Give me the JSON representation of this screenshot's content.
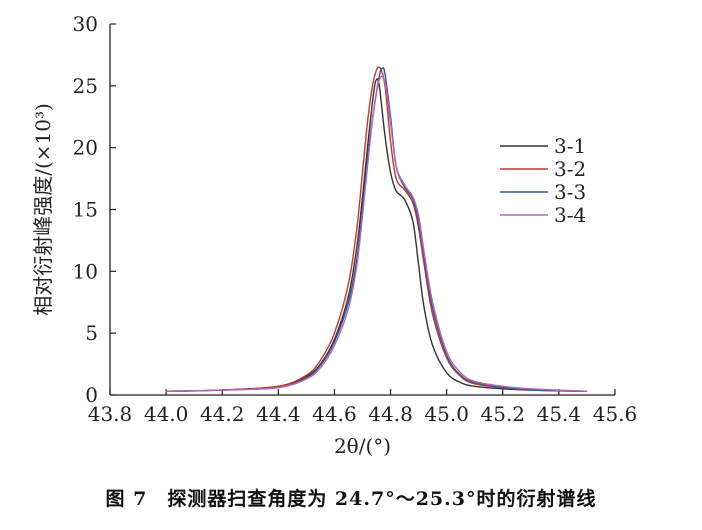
{
  "caption": "图 7　探测器扫查角度为 24.7°～25.3°时的衍射谱线",
  "chart_data": {
    "type": "line",
    "xlabel": "2θ/(°)",
    "ylabel": "相对衍射峰强度/(×10³)",
    "xlim": [
      43.8,
      45.6
    ],
    "ylim": [
      0,
      30
    ],
    "x_ticks": [
      "43.8",
      "44.0",
      "44.2",
      "44.4",
      "44.6",
      "44.8",
      "45.0",
      "45.2",
      "45.4",
      "45.6"
    ],
    "y_ticks": [
      "0",
      "5",
      "10",
      "15",
      "20",
      "25",
      "30"
    ],
    "grid": false,
    "legend_position": "right",
    "series": [
      {
        "name": "3-1",
        "color": "#333333",
        "x": [
          44.0,
          44.2,
          44.4,
          44.5,
          44.55,
          44.6,
          44.65,
          44.68,
          44.7,
          44.72,
          44.74,
          44.75,
          44.76,
          44.78,
          44.8,
          44.82,
          44.85,
          44.88,
          44.9,
          44.92,
          44.95,
          45.0,
          45.05,
          45.1,
          45.2,
          45.3,
          45.5
        ],
        "y": [
          0.3,
          0.4,
          0.7,
          1.5,
          2.5,
          4.5,
          8.0,
          12.0,
          16.0,
          20.5,
          24.5,
          25.5,
          25.0,
          21.0,
          18.0,
          16.5,
          15.8,
          14.0,
          10.5,
          7.0,
          4.0,
          1.8,
          1.0,
          0.7,
          0.5,
          0.4,
          0.3
        ]
      },
      {
        "name": "3-2",
        "color": "#c0392b",
        "x": [
          44.0,
          44.2,
          44.4,
          44.5,
          44.55,
          44.6,
          44.65,
          44.68,
          44.7,
          44.72,
          44.74,
          44.76,
          44.78,
          44.8,
          44.82,
          44.85,
          44.88,
          44.9,
          44.92,
          44.95,
          45.0,
          45.05,
          45.1,
          45.2,
          45.3,
          45.5
        ],
        "y": [
          0.3,
          0.4,
          0.7,
          1.6,
          2.8,
          5.0,
          9.0,
          13.5,
          18.0,
          22.5,
          25.5,
          26.5,
          25.0,
          20.5,
          17.5,
          16.6,
          15.5,
          13.5,
          10.5,
          6.5,
          3.0,
          1.5,
          0.9,
          0.6,
          0.4,
          0.3
        ]
      },
      {
        "name": "3-3",
        "color": "#2e5c8a",
        "x": [
          44.0,
          44.2,
          44.4,
          44.5,
          44.55,
          44.6,
          44.65,
          44.68,
          44.7,
          44.72,
          44.74,
          44.76,
          44.77,
          44.78,
          44.8,
          44.82,
          44.85,
          44.88,
          44.9,
          44.92,
          44.95,
          45.0,
          45.05,
          45.1,
          45.2,
          45.3,
          45.5
        ],
        "y": [
          0.3,
          0.4,
          0.6,
          1.4,
          2.4,
          4.3,
          7.5,
          11.0,
          15.0,
          19.5,
          23.0,
          25.8,
          26.4,
          26.0,
          22.5,
          18.5,
          16.8,
          15.8,
          14.0,
          11.0,
          7.0,
          3.2,
          1.6,
          1.0,
          0.6,
          0.4,
          0.3
        ]
      },
      {
        "name": "3-4",
        "color": "#b565b5",
        "x": [
          44.0,
          44.2,
          44.4,
          44.5,
          44.55,
          44.6,
          44.65,
          44.68,
          44.7,
          44.72,
          44.74,
          44.76,
          44.78,
          44.8,
          44.82,
          44.85,
          44.88,
          44.9,
          44.92,
          44.95,
          45.0,
          45.05,
          45.1,
          45.2,
          45.3,
          45.5
        ],
        "y": [
          0.3,
          0.4,
          0.6,
          1.3,
          2.2,
          4.0,
          7.0,
          10.5,
          14.5,
          19.0,
          23.0,
          25.5,
          25.3,
          22.0,
          18.5,
          17.0,
          16.0,
          14.5,
          11.5,
          7.5,
          3.5,
          1.8,
          1.1,
          0.7,
          0.5,
          0.3
        ]
      }
    ]
  }
}
